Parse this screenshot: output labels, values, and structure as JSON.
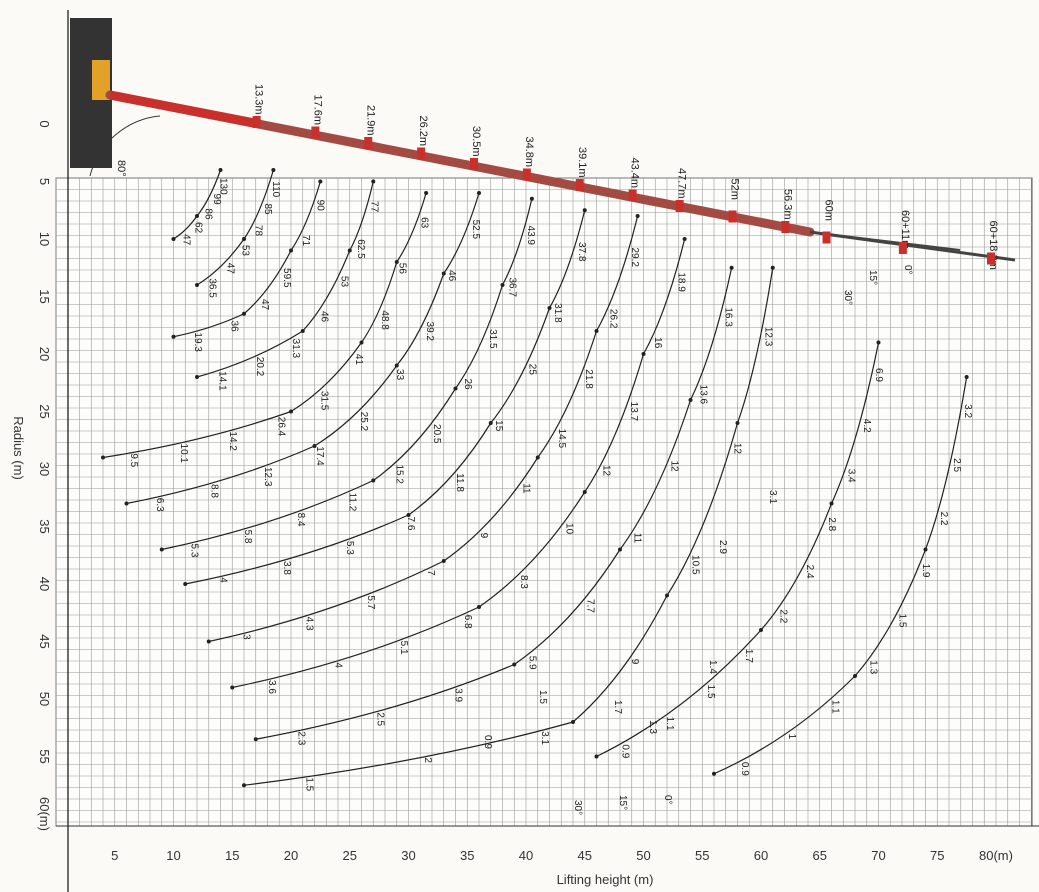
{
  "chart_data": {
    "type": "line",
    "title": "",
    "xlabel": "Lifting height (m)",
    "ylabel": "Radius (m)",
    "x_ticks": [
      "5",
      "10",
      "15",
      "20",
      "25",
      "30",
      "35",
      "40",
      "45",
      "50",
      "55",
      "60",
      "65",
      "70",
      "75",
      "80(m)"
    ],
    "y_ticks": [
      "0",
      "5",
      "10",
      "15",
      "20",
      "25",
      "30",
      "35",
      "40",
      "45",
      "50",
      "55",
      "60(m)"
    ],
    "xlim": [
      0,
      82
    ],
    "ylim": [
      -8,
      62
    ],
    "y_inverted": true,
    "grid": true,
    "boom_angle_label": "80°",
    "boom_length_labels": [
      {
        "text": "13.3m",
        "x": 17.5
      },
      {
        "text": "17.6m",
        "x": 22.5
      },
      {
        "text": "21.9m",
        "x": 27
      },
      {
        "text": "26.2m",
        "x": 31.5
      },
      {
        "text": "30.5m",
        "x": 36
      },
      {
        "text": "34.8m",
        "x": 40.5
      },
      {
        "text": "39.1m",
        "x": 45
      },
      {
        "text": "43.4m",
        "x": 49.5
      },
      {
        "text": "47.7m",
        "x": 53.5
      },
      {
        "text": "52m",
        "x": 58
      },
      {
        "text": "56.3m",
        "x": 62.5
      },
      {
        "text": "60m",
        "x": 66
      },
      {
        "text": "60+11m",
        "x": 72.5
      },
      {
        "text": "60+18.3m",
        "x": 80
      }
    ],
    "series": [
      {
        "boom": "13.3m",
        "points": [
          [
            14,
            4
          ],
          [
            12,
            8
          ],
          [
            10,
            10
          ]
        ],
        "loads": [
          "130",
          "99",
          "86",
          "62",
          "47"
        ]
      },
      {
        "boom": "13.3m",
        "points": [
          [
            18.5,
            4
          ],
          [
            16,
            10
          ],
          [
            12,
            14
          ]
        ],
        "loads": [
          "110",
          "85",
          "78",
          "53",
          "47",
          "36.5"
        ]
      },
      {
        "boom": "17.6m",
        "points": [
          [
            22.5,
            5
          ],
          [
            20,
            11
          ],
          [
            16,
            16.5
          ],
          [
            10,
            18.5
          ]
        ],
        "loads": [
          "90",
          "71",
          "59.5",
          "47",
          "36",
          "19.3"
        ]
      },
      {
        "boom": "21.9m",
        "points": [
          [
            27,
            5
          ],
          [
            25,
            11
          ],
          [
            21,
            18
          ],
          [
            12,
            22
          ]
        ],
        "loads": [
          "77",
          "62.5",
          "53",
          "46",
          "31.3",
          "20.2",
          "14.1"
        ]
      },
      {
        "boom": "26.2m",
        "points": [
          [
            31.5,
            6
          ],
          [
            29,
            12
          ],
          [
            26,
            19
          ],
          [
            20,
            25
          ],
          [
            4,
            29
          ]
        ],
        "loads": [
          "63",
          "56",
          "48.8",
          "41",
          "31.5",
          "26.4",
          "14.2",
          "10.1",
          "9.5"
        ]
      },
      {
        "boom": "30.5m",
        "points": [
          [
            36,
            6
          ],
          [
            33,
            13
          ],
          [
            29,
            21
          ],
          [
            22,
            28
          ],
          [
            6,
            33
          ]
        ],
        "loads": [
          "52.5",
          "46",
          "39.2",
          "33",
          "25.2",
          "17.4",
          "12.3",
          "8.8",
          "6.3"
        ]
      },
      {
        "boom": "34.8m",
        "points": [
          [
            40.5,
            6.5
          ],
          [
            38,
            14
          ],
          [
            34,
            23
          ],
          [
            27,
            31
          ],
          [
            9,
            37
          ]
        ],
        "loads": [
          "43.9",
          "36.7",
          "31.5",
          "26",
          "20.5",
          "15.2",
          "11.2",
          "8.4",
          "5.8",
          "5.3"
        ]
      },
      {
        "boom": "39.1m",
        "points": [
          [
            45,
            7.5
          ],
          [
            42,
            16
          ],
          [
            37,
            26
          ],
          [
            30,
            34
          ],
          [
            11,
            40
          ]
        ],
        "loads": [
          "37.8",
          "31.8",
          "25",
          "15",
          "11.8",
          "7.6",
          "5.3",
          "3.8",
          "4"
        ]
      },
      {
        "boom": "43.4m",
        "points": [
          [
            49.5,
            8
          ],
          [
            46,
            18
          ],
          [
            41,
            29
          ],
          [
            33,
            38
          ],
          [
            13,
            45
          ]
        ],
        "loads": [
          "29.2",
          "26.2",
          "21.8",
          "14.5",
          "11",
          "9",
          "7",
          "5.7",
          "4.3",
          "3"
        ]
      },
      {
        "boom": "47.7m",
        "points": [
          [
            53.5,
            10
          ],
          [
            50,
            20
          ],
          [
            45,
            32
          ],
          [
            36,
            42
          ],
          [
            15,
            49
          ]
        ],
        "loads": [
          "18.9",
          "16",
          "13.7",
          "12",
          "10",
          "8.3",
          "6.8",
          "5.1",
          "4",
          "3.6"
        ]
      },
      {
        "boom": "52m",
        "points": [
          [
            57.5,
            12.5
          ],
          [
            54,
            24
          ],
          [
            48,
            37
          ],
          [
            39,
            47
          ],
          [
            17,
            53.5
          ]
        ],
        "loads": [
          "16.3",
          "13.6",
          "12",
          "11",
          "7.7",
          "5.9",
          "3.9",
          "2.5",
          "2.3"
        ]
      },
      {
        "boom": "56.3m",
        "points": [
          [
            61,
            12.5
          ],
          [
            58,
            26
          ],
          [
            52,
            41
          ],
          [
            44,
            52
          ],
          [
            16,
            57.5
          ]
        ],
        "loads": [
          "12.3",
          "12",
          "10.5",
          "9",
          "3.1",
          "2",
          "1.5"
        ]
      },
      {
        "boom": "60+11m",
        "points": [
          [
            70,
            19
          ],
          [
            66,
            33
          ],
          [
            60,
            44
          ],
          [
            46,
            55
          ]
        ],
        "loads": [
          "6.9",
          "4.2",
          "3.4",
          "2.8",
          "2.4",
          "2.2",
          "1.7",
          "1.5",
          "1.1",
          "0.9"
        ]
      },
      {
        "boom": "60+18.3m",
        "points": [
          [
            77.5,
            22
          ],
          [
            74,
            37
          ],
          [
            68,
            48
          ],
          [
            56,
            56.5
          ]
        ],
        "loads": [
          "3.2",
          "2.5",
          "2.2",
          "1.9",
          "1.5",
          "1.3",
          "1.1",
          "1",
          "0.9"
        ]
      }
    ],
    "annotations": [
      "15°",
      "0°",
      "30°",
      "3.1",
      "2.9",
      "1.7",
      "1.5",
      "1.4",
      "1.3",
      "0.9",
      "15°",
      "0°",
      "30°"
    ]
  }
}
